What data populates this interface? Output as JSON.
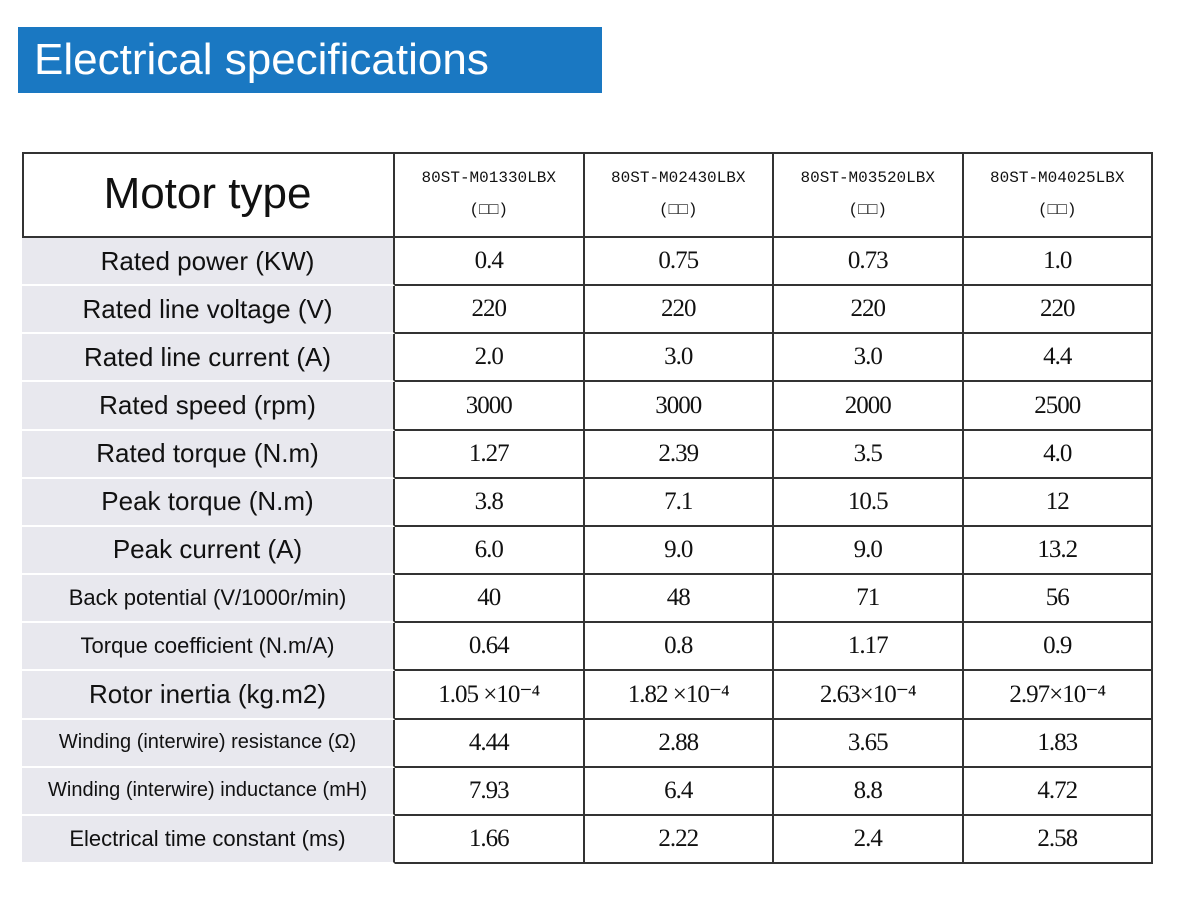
{
  "header": {
    "title": "Electrical specifications"
  },
  "table": {
    "corner": "Motor type",
    "columns": [
      {
        "model": "80ST-M01330LBX",
        "note": "(□□)"
      },
      {
        "model": "80ST-M02430LBX",
        "note": "(□□)"
      },
      {
        "model": "80ST-M03520LBX",
        "note": "(□□)"
      },
      {
        "model": "80ST-M04025LBX",
        "note": "(□□)"
      }
    ],
    "rows": [
      {
        "label": "Rated power (KW)",
        "values": [
          "0.4",
          "0.75",
          "0.73",
          "1.0"
        ]
      },
      {
        "label": "Rated line voltage (V)",
        "values": [
          "220",
          "220",
          "220",
          "220"
        ]
      },
      {
        "label": "Rated line current (A)",
        "values": [
          "2.0",
          "3.0",
          "3.0",
          "4.4"
        ]
      },
      {
        "label": "Rated speed (rpm)",
        "values": [
          "3000",
          "3000",
          "2000",
          "2500"
        ]
      },
      {
        "label": "Rated torque (N.m)",
        "values": [
          "1.27",
          "2.39",
          "3.5",
          "4.0"
        ]
      },
      {
        "label": "Peak torque (N.m)",
        "values": [
          "3.8",
          "7.1",
          "10.5",
          "12"
        ]
      },
      {
        "label": "Peak current (A)",
        "values": [
          "6.0",
          "9.0",
          "9.0",
          "13.2"
        ]
      },
      {
        "label": "Back potential (V/1000r/min)",
        "values": [
          "40",
          "48",
          "71",
          "56"
        ]
      },
      {
        "label": "Torque coefficient (N.m/A)",
        "values": [
          "0.64",
          "0.8",
          "1.17",
          "0.9"
        ]
      },
      {
        "label": "Rotor inertia (kg.m2)",
        "values": [
          "1.05 ×10⁻⁴",
          "1.82 ×10⁻⁴",
          "2.63×10⁻⁴",
          "2.97×10⁻⁴"
        ]
      },
      {
        "label": "Winding (interwire) resistance (Ω)",
        "values": [
          "4.44",
          "2.88",
          "3.65",
          "1.83"
        ]
      },
      {
        "label": "Winding (interwire) inductance (mH)",
        "values": [
          "7.93",
          "6.4",
          "8.8",
          "4.72"
        ]
      },
      {
        "label": "Electrical time constant (ms)",
        "values": [
          "1.66",
          "2.22",
          "2.4",
          "2.58"
        ]
      }
    ]
  }
}
